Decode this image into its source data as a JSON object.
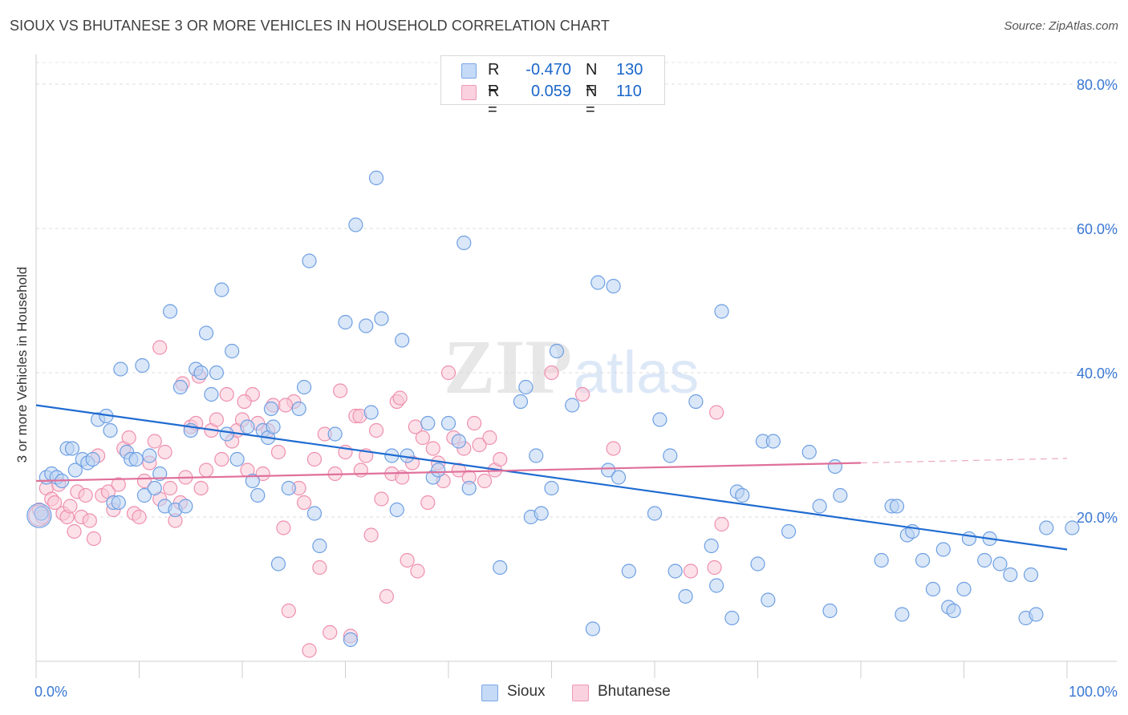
{
  "header": {
    "title": "SIOUX VS BHUTANESE 3 OR MORE VEHICLES IN HOUSEHOLD CORRELATION CHART",
    "source": "Source: ZipAtlas.com"
  },
  "watermark": {
    "zip": "ZIP",
    "atlas": "atlas"
  },
  "legend": {
    "rows": [
      {
        "r_label": "R =",
        "r_value": "-0.470",
        "n_label": "N =",
        "n_value": "130",
        "color": "#aac8ef"
      },
      {
        "r_label": "R =",
        "r_value": "0.059",
        "n_label": "N =",
        "n_value": "110",
        "color": "#f6bccd"
      }
    ]
  },
  "bottom_legend": [
    {
      "label": "Sioux",
      "color": "#aac8ef"
    },
    {
      "label": "Bhutanese",
      "color": "#f6bccd"
    }
  ],
  "chart_data": {
    "type": "scatter",
    "title": "SIOUX VS BHUTANESE 3 OR MORE VEHICLES IN HOUSEHOLD CORRELATION CHART",
    "xlabel": "",
    "ylabel": "3 or more Vehicles in Household",
    "xlim": [
      0,
      100
    ],
    "ylim": [
      0,
      83
    ],
    "x_tick_labels": [
      "0.0%",
      "100.0%"
    ],
    "y_ticks": [
      20,
      40,
      60,
      80
    ],
    "y_tick_labels": [
      "20.0%",
      "40.0%",
      "60.0%",
      "80.0%"
    ],
    "grid": "horizontal dashed",
    "legend_position": "top-center",
    "colors": {
      "Sioux": "#6d9fe3",
      "Sioux_line": "#1f6bd1",
      "Bhutanese": "#ef8fae",
      "Bhutanese_line": "#e0709a"
    },
    "series": [
      {
        "name": "Sioux",
        "trend": {
          "x": [
            0,
            100
          ],
          "y": [
            35.5,
            15.5
          ]
        },
        "points": [
          [
            0.5,
            20.5
          ],
          [
            1,
            25.5
          ],
          [
            1.5,
            26
          ],
          [
            2,
            25.5
          ],
          [
            2.5,
            25
          ],
          [
            3,
            29.5
          ],
          [
            3.5,
            29.5
          ],
          [
            3.8,
            26.5
          ],
          [
            4.5,
            28
          ],
          [
            5,
            27.5
          ],
          [
            5.5,
            28
          ],
          [
            6,
            33.5
          ],
          [
            6.8,
            34
          ],
          [
            7.2,
            32
          ],
          [
            7.5,
            22
          ],
          [
            8,
            22
          ],
          [
            8.2,
            40.5
          ],
          [
            8.8,
            29
          ],
          [
            9.2,
            28
          ],
          [
            9.7,
            28
          ],
          [
            10.3,
            41
          ],
          [
            10.5,
            23
          ],
          [
            11,
            28.5
          ],
          [
            11.5,
            24
          ],
          [
            12,
            26
          ],
          [
            12.5,
            21.5
          ],
          [
            13,
            48.5
          ],
          [
            13.5,
            21
          ],
          [
            14,
            38
          ],
          [
            14.5,
            21.5
          ],
          [
            15,
            32
          ],
          [
            15.5,
            40.5
          ],
          [
            16,
            40
          ],
          [
            16.5,
            45.5
          ],
          [
            17,
            37
          ],
          [
            17.5,
            40
          ],
          [
            18,
            51.5
          ],
          [
            18.5,
            31.5
          ],
          [
            19,
            43
          ],
          [
            19.5,
            28
          ],
          [
            20.5,
            32.5
          ],
          [
            21,
            25
          ],
          [
            21.5,
            23
          ],
          [
            22,
            32
          ],
          [
            22.5,
            31
          ],
          [
            22.8,
            35
          ],
          [
            23,
            32.5
          ],
          [
            23.5,
            13.5
          ],
          [
            24.5,
            24
          ],
          [
            25.5,
            35
          ],
          [
            26,
            38
          ],
          [
            26.5,
            55.5
          ],
          [
            27,
            20.5
          ],
          [
            27.5,
            16
          ],
          [
            29,
            31.5
          ],
          [
            30,
            47
          ],
          [
            30.5,
            3
          ],
          [
            31,
            60.5
          ],
          [
            32,
            46.5
          ],
          [
            32.5,
            34.5
          ],
          [
            33,
            67
          ],
          [
            33.5,
            47.5
          ],
          [
            34.5,
            28.5
          ],
          [
            35,
            21
          ],
          [
            35.5,
            44.5
          ],
          [
            36,
            28.5
          ],
          [
            38,
            33
          ],
          [
            38.5,
            25.5
          ],
          [
            39,
            26.5
          ],
          [
            40,
            33
          ],
          [
            41,
            30.5
          ],
          [
            41.5,
            58
          ],
          [
            42,
            24
          ],
          [
            45,
            13
          ],
          [
            47,
            36
          ],
          [
            47.5,
            38
          ],
          [
            48,
            20
          ],
          [
            48.5,
            28.5
          ],
          [
            49,
            20.5
          ],
          [
            50,
            24
          ],
          [
            50.5,
            43
          ],
          [
            52,
            35.5
          ],
          [
            54,
            4.5
          ],
          [
            54.5,
            52.5
          ],
          [
            55.5,
            26.5
          ],
          [
            56,
            52
          ],
          [
            56.5,
            25.5
          ],
          [
            57.5,
            12.5
          ],
          [
            60,
            20.5
          ],
          [
            60.5,
            33.5
          ],
          [
            61.5,
            28.5
          ],
          [
            62,
            12.5
          ],
          [
            63,
            9
          ],
          [
            64,
            36
          ],
          [
            65.5,
            16
          ],
          [
            66,
            10.5
          ],
          [
            66.5,
            48.5
          ],
          [
            67.5,
            6
          ],
          [
            68,
            23.5
          ],
          [
            68.5,
            23
          ],
          [
            70,
            13.5
          ],
          [
            70.5,
            30.5
          ],
          [
            71,
            8.5
          ],
          [
            71.5,
            30.5
          ],
          [
            73,
            18
          ],
          [
            75,
            29
          ],
          [
            76,
            21.5
          ],
          [
            77,
            7
          ],
          [
            77.5,
            27
          ],
          [
            78,
            23
          ],
          [
            82,
            14
          ],
          [
            83,
            21.5
          ],
          [
            83.5,
            21.5
          ],
          [
            84,
            6.5
          ],
          [
            84.5,
            17.5
          ],
          [
            85,
            18
          ],
          [
            86,
            14
          ],
          [
            87,
            10
          ],
          [
            88,
            15.5
          ],
          [
            88.5,
            7.5
          ],
          [
            89,
            7
          ],
          [
            90,
            10
          ],
          [
            90.5,
            17
          ],
          [
            92,
            14
          ],
          [
            92.5,
            17
          ],
          [
            93.5,
            13.5
          ],
          [
            94.5,
            12
          ],
          [
            96,
            6
          ],
          [
            96.5,
            12
          ],
          [
            97,
            6.5
          ],
          [
            98,
            18.5
          ],
          [
            100.5,
            18.5
          ]
        ]
      },
      {
        "name": "Bhutanese",
        "trend": {
          "x": [
            0,
            80
          ],
          "y": [
            25,
            27.5
          ]
        },
        "points": [
          [
            0.3,
            21
          ],
          [
            0.6,
            20
          ],
          [
            1,
            24
          ],
          [
            1.5,
            22.5
          ],
          [
            1.8,
            22
          ],
          [
            2.2,
            24.5
          ],
          [
            2.6,
            20.5
          ],
          [
            3,
            20
          ],
          [
            3.3,
            21.5
          ],
          [
            3.7,
            18
          ],
          [
            4,
            23.5
          ],
          [
            4.4,
            20
          ],
          [
            4.8,
            23
          ],
          [
            5.2,
            19.5
          ],
          [
            5.6,
            17
          ],
          [
            6,
            28.5
          ],
          [
            6.4,
            23
          ],
          [
            7,
            23.5
          ],
          [
            7.5,
            21
          ],
          [
            8,
            24.5
          ],
          [
            8.5,
            29.5
          ],
          [
            9,
            31
          ],
          [
            9.5,
            20.5
          ],
          [
            10,
            20
          ],
          [
            10.5,
            25
          ],
          [
            11,
            27.5
          ],
          [
            11.5,
            30.5
          ],
          [
            12,
            22.5
          ],
          [
            12.5,
            29
          ],
          [
            13,
            24
          ],
          [
            13.5,
            19.5
          ],
          [
            14,
            22
          ],
          [
            14.5,
            25.5
          ],
          [
            15,
            32.5
          ],
          [
            15.5,
            33
          ],
          [
            16,
            24
          ],
          [
            16.5,
            26.5
          ],
          [
            17,
            32
          ],
          [
            17.5,
            33.5
          ],
          [
            18,
            28
          ],
          [
            18.5,
            37
          ],
          [
            19,
            30.5
          ],
          [
            19.5,
            32
          ],
          [
            20,
            33.5
          ],
          [
            20.5,
            26.5
          ],
          [
            21,
            37
          ],
          [
            21.5,
            33
          ],
          [
            22,
            26
          ],
          [
            22.5,
            32
          ],
          [
            23,
            35.5
          ],
          [
            23.5,
            29
          ],
          [
            24,
            18.5
          ],
          [
            24.5,
            7
          ],
          [
            25,
            36
          ],
          [
            25.5,
            24
          ],
          [
            26,
            22
          ],
          [
            26.5,
            1.5
          ],
          [
            27,
            28
          ],
          [
            27.5,
            13
          ],
          [
            28,
            31.5
          ],
          [
            28.5,
            4
          ],
          [
            29,
            26
          ],
          [
            29.5,
            37.5
          ],
          [
            30,
            29
          ],
          [
            30.5,
            3.5
          ],
          [
            31,
            34
          ],
          [
            31.5,
            26.5
          ],
          [
            32,
            28.5
          ],
          [
            32.5,
            17.5
          ],
          [
            33,
            32
          ],
          [
            33.5,
            22.5
          ],
          [
            34,
            9
          ],
          [
            34.5,
            26
          ],
          [
            35,
            36
          ],
          [
            35.5,
            25.5
          ],
          [
            36,
            14
          ],
          [
            36.5,
            27.5
          ],
          [
            37,
            12.5
          ],
          [
            37.5,
            31
          ],
          [
            38,
            22
          ],
          [
            38.5,
            29.5
          ],
          [
            39,
            27.5
          ],
          [
            39.5,
            25
          ],
          [
            40,
            40
          ],
          [
            40.5,
            31
          ],
          [
            41,
            26.5
          ],
          [
            41.5,
            29.5
          ],
          [
            42,
            25.5
          ],
          [
            42.5,
            33
          ],
          [
            43,
            30
          ],
          [
            43.5,
            25
          ],
          [
            44,
            31
          ],
          [
            44.5,
            26.5
          ],
          [
            45,
            28
          ],
          [
            12,
            43.5
          ],
          [
            14.2,
            38.5
          ],
          [
            15.8,
            39.5
          ],
          [
            20.2,
            36
          ],
          [
            24.2,
            35.5
          ],
          [
            31.4,
            34
          ],
          [
            35.3,
            36.5
          ],
          [
            36.8,
            32.5
          ],
          [
            50,
            40
          ],
          [
            53,
            37
          ],
          [
            56,
            29.5
          ],
          [
            63.5,
            12.5
          ],
          [
            66,
            34.5
          ],
          [
            66.5,
            19
          ],
          [
            65.8,
            13
          ]
        ]
      }
    ]
  }
}
